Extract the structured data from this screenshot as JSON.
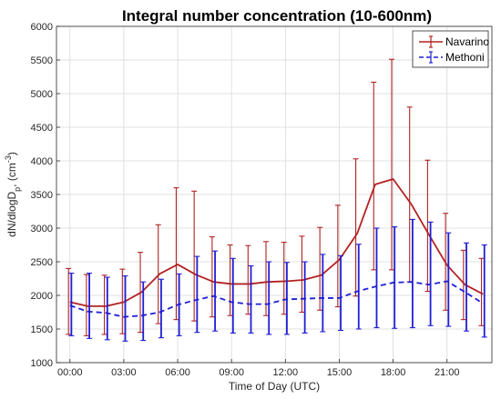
{
  "chart_data": {
    "type": "line",
    "title": "Integral number concentration (10-600nm)",
    "xlabel": "Time of Day (UTC)",
    "ylabel_main": "dN/dlogD",
    "ylabel_sub": "p",
    "ylabel_unit": ", (cm",
    "ylabel_sup": "-3",
    "ylabel_close": ")",
    "xlim": [
      -0.75,
      23.5
    ],
    "ylim": [
      1000,
      6000
    ],
    "grid": true,
    "legend_position": "top-right",
    "x_tick_values": [
      0,
      3,
      6,
      9,
      12,
      15,
      18,
      21
    ],
    "x_tick_labels": [
      "00:00",
      "03:00",
      "06:00",
      "09:00",
      "12:00",
      "15:00",
      "18:00",
      "21:00"
    ],
    "y_ticks": [
      1000,
      1500,
      2000,
      2500,
      3000,
      3500,
      4000,
      4500,
      5000,
      5500,
      6000
    ],
    "x": [
      0,
      1,
      2,
      3,
      4,
      5,
      6,
      7,
      8,
      9,
      10,
      11,
      12,
      13,
      14,
      15,
      16,
      17,
      18,
      19,
      20,
      21,
      22,
      23
    ],
    "series": [
      {
        "name": "Navarino",
        "color": "#b22222",
        "style": "solid",
        "values": [
          1900,
          1840,
          1840,
          1900,
          2050,
          2320,
          2460,
          2310,
          2200,
          2170,
          2170,
          2200,
          2210,
          2230,
          2300,
          2530,
          2920,
          3650,
          3730,
          3360,
          2900,
          2450,
          2160,
          2020
        ],
        "err_low": [
          1420,
          1400,
          1420,
          1430,
          1450,
          1580,
          1640,
          1620,
          1680,
          1700,
          1720,
          1700,
          1720,
          1750,
          1780,
          1830,
          1990,
          2380,
          2380,
          2200,
          2060,
          1780,
          1640,
          1550
        ],
        "err_high": [
          2400,
          2310,
          2300,
          2390,
          2640,
          3050,
          3600,
          3550,
          2870,
          2750,
          2740,
          2800,
          2790,
          2880,
          3010,
          3340,
          4030,
          5170,
          5510,
          4800,
          4010,
          3220,
          2670,
          2550
        ]
      },
      {
        "name": "Methoni",
        "color": "#1f1fd6",
        "style": "dashed",
        "values": [
          1850,
          1760,
          1740,
          1680,
          1700,
          1750,
          1860,
          1930,
          1990,
          1900,
          1870,
          1870,
          1940,
          1950,
          1960,
          1960,
          2060,
          2130,
          2190,
          2200,
          2160,
          2210,
          2050,
          1880
        ],
        "err_low": [
          1400,
          1360,
          1340,
          1320,
          1330,
          1370,
          1400,
          1450,
          1470,
          1440,
          1440,
          1420,
          1420,
          1440,
          1460,
          1480,
          1500,
          1520,
          1510,
          1520,
          1550,
          1540,
          1470,
          1380
        ],
        "err_high": [
          2330,
          2330,
          2270,
          2290,
          2200,
          2240,
          2320,
          2580,
          2660,
          2550,
          2440,
          2500,
          2490,
          2500,
          2610,
          2590,
          2760,
          3000,
          3020,
          3130,
          3090,
          2930,
          2780,
          2750
        ]
      }
    ]
  }
}
